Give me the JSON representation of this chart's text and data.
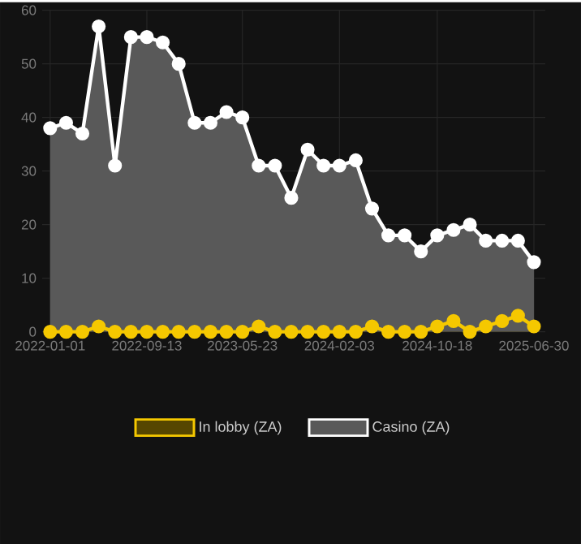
{
  "chart_data": {
    "type": "area",
    "x": [
      "2022-01-01",
      "2022-02-12",
      "2022-03-27",
      "2022-05-09",
      "2022-06-21",
      "2022-08-02",
      "2022-09-13",
      "2022-10-25",
      "2022-12-06",
      "2023-01-17",
      "2023-02-28",
      "2023-04-11",
      "2023-05-23",
      "2023-07-05",
      "2023-08-17",
      "2023-09-29",
      "2023-11-11",
      "2023-12-23",
      "2024-02-03",
      "2024-03-17",
      "2024-04-29",
      "2024-06-11",
      "2024-07-24",
      "2024-09-05",
      "2024-10-18",
      "2024-11-30",
      "2025-01-12",
      "2025-02-23",
      "2025-04-07",
      "2025-05-19",
      "2025-06-30"
    ],
    "series": [
      {
        "name": "In lobby (ZA)",
        "color": "#f5c800",
        "values": [
          0,
          0,
          0,
          1,
          0,
          0,
          0,
          0,
          0,
          0,
          0,
          0,
          0,
          1,
          0,
          0,
          0,
          0,
          0,
          0,
          1,
          0,
          0,
          0,
          1,
          2,
          0,
          1,
          2,
          3,
          1
        ]
      },
      {
        "name": "Casino (ZA)",
        "color": "#ffffff",
        "values": [
          38,
          39,
          37,
          57,
          31,
          55,
          55,
          54,
          50,
          39,
          39,
          41,
          40,
          31,
          31,
          25,
          34,
          31,
          31,
          32,
          23,
          18,
          18,
          15,
          18,
          19,
          20,
          17,
          17,
          17,
          13
        ]
      }
    ],
    "xlim": [
      "2021-12-11",
      "2025-07-30"
    ],
    "xticks": [
      "2022-01-01",
      "2022-09-13",
      "2023-05-23",
      "2024-02-03",
      "2024-10-18",
      "2025-06-30"
    ],
    "ylim": [
      0,
      60
    ],
    "yticks": [
      0,
      10,
      20,
      30,
      40,
      50,
      60
    ],
    "grid": true,
    "legend": "bottom",
    "marker": "circle"
  }
}
